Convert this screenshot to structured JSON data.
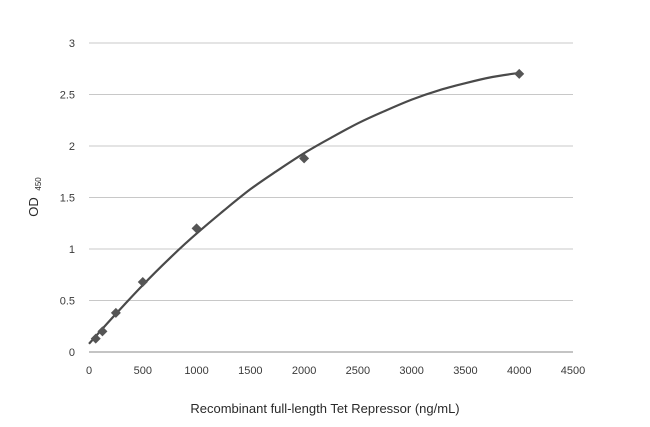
{
  "chart_data": {
    "type": "scatter",
    "xlabel": "Recombinant full-length Tet Repressor (ng/mL)",
    "ylabel": "OD",
    "ylabel_subscript": "450",
    "xlim": [
      0,
      4500
    ],
    "ylim": [
      0,
      3
    ],
    "x_ticks": [
      "0",
      "500",
      "1000",
      "1500",
      "2000",
      "2500",
      "3000",
      "3500",
      "4000",
      "4500"
    ],
    "y_ticks": [
      "0",
      "0.5",
      "1",
      "1.5",
      "2",
      "2.5",
      "3"
    ],
    "grid": "horizontal",
    "series": [
      {
        "marker": "diamond",
        "color": "#555555",
        "x": [
          62.5,
          125,
          250,
          500,
          1000,
          2000,
          4000
        ],
        "y": [
          0.13,
          0.2,
          0.38,
          0.68,
          1.2,
          1.88,
          2.7
        ]
      }
    ],
    "trendline": {
      "type": "polynomial",
      "color": "#4a4a4a",
      "x": [
        0,
        250,
        500,
        750,
        1000,
        1250,
        1500,
        1750,
        2000,
        2250,
        2500,
        2750,
        3000,
        3250,
        3500,
        3750,
        4000
      ],
      "y": [
        0.08,
        0.37,
        0.65,
        0.91,
        1.15,
        1.37,
        1.58,
        1.76,
        1.93,
        2.08,
        2.22,
        2.34,
        2.45,
        2.54,
        2.61,
        2.67,
        2.71
      ]
    }
  }
}
